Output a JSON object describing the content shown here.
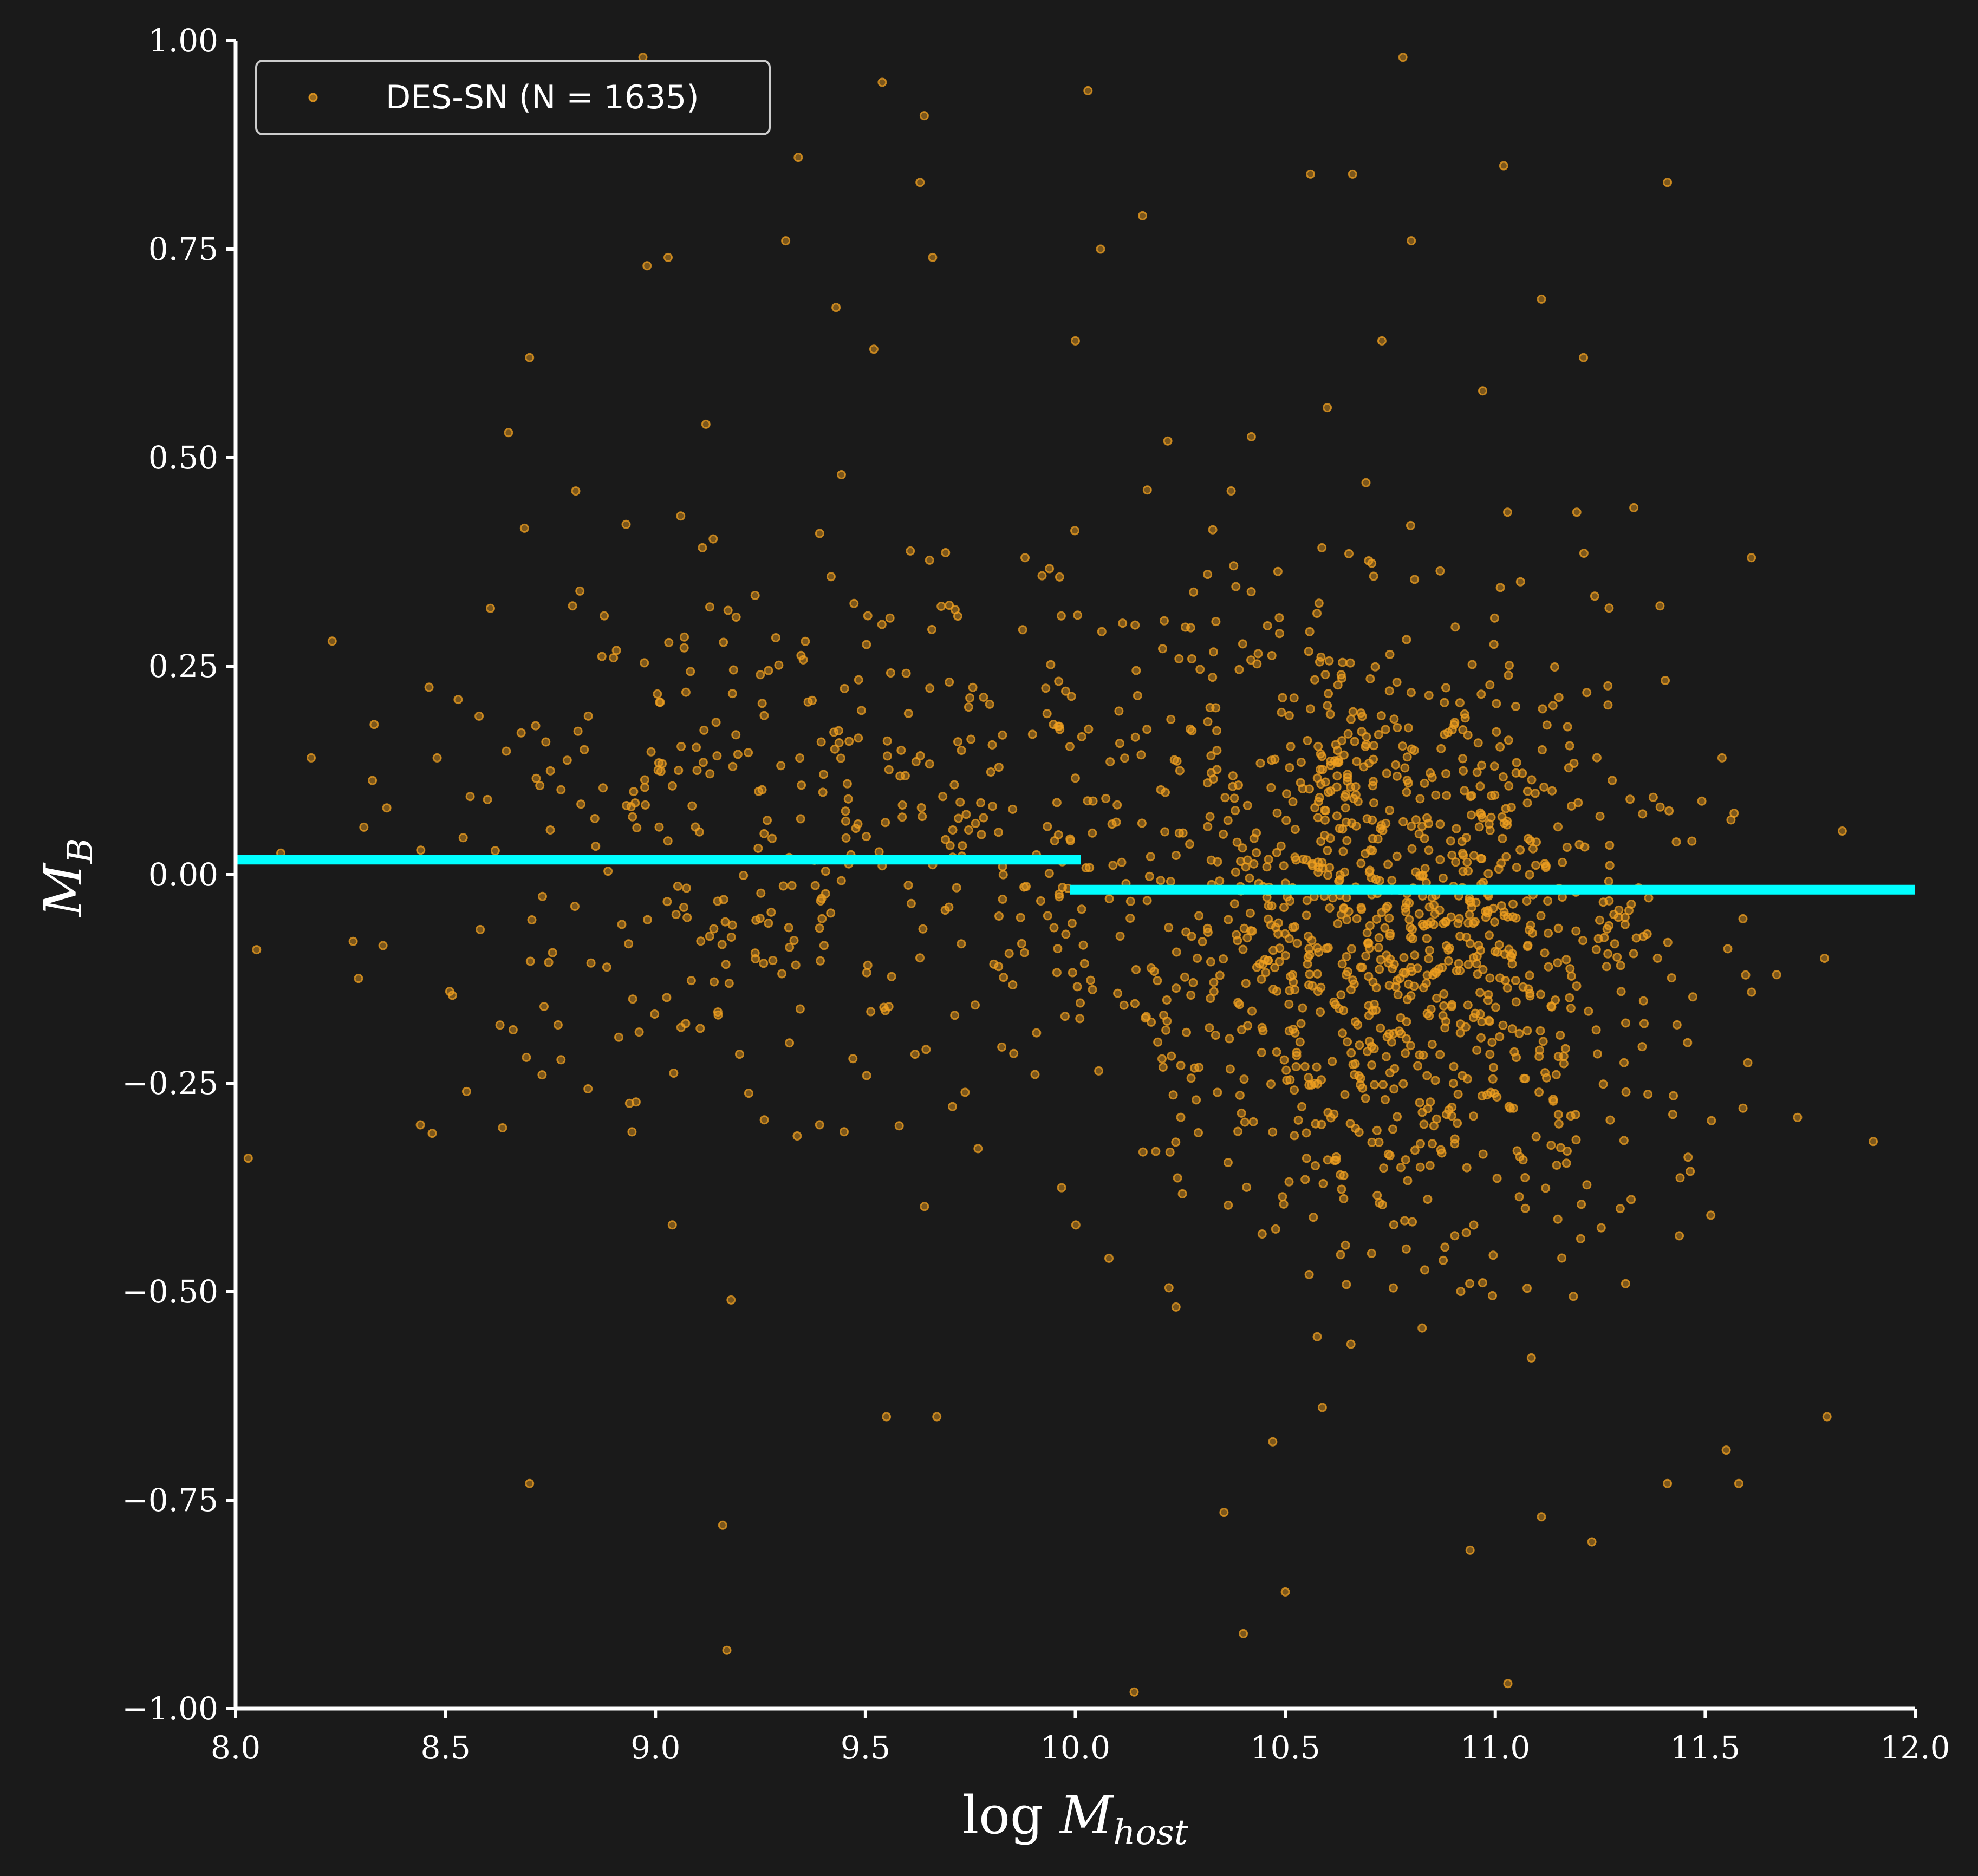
{
  "colors": {
    "background": "#1a1a1a",
    "axes": "#ffffff",
    "points": "#f0a020",
    "fit_lines": "#00ffff"
  },
  "chart_data": {
    "type": "scatter",
    "title": "",
    "xlabel": "log M_host",
    "ylabel": "M_B",
    "xlim": [
      8.0,
      12.0
    ],
    "ylim": [
      -1.0,
      1.0
    ],
    "xticks": [
      "8.0",
      "8.5",
      "9.0",
      "9.5",
      "10.0",
      "10.5",
      "11.0",
      "11.5",
      "12.0"
    ],
    "yticks": [
      "1.00",
      "0.75",
      "0.50",
      "0.25",
      "0.00",
      "−0.25",
      "−0.50",
      "−0.75",
      "−1.00"
    ],
    "grid": false,
    "legend": {
      "placement": "top-left",
      "entries": [
        "DES-SN (N = 1635)"
      ]
    },
    "series": [
      {
        "name": "DES-SN (N = 1635)",
        "type": "scatter",
        "point_count": 1635,
        "points_sample": [
          [
            8.03,
            -0.34
          ],
          [
            8.05,
            -0.09
          ],
          [
            8.18,
            0.14
          ],
          [
            8.23,
            0.28
          ],
          [
            8.28,
            -0.08
          ],
          [
            8.33,
            0.18
          ],
          [
            8.36,
            0.08
          ],
          [
            8.44,
            -0.3
          ],
          [
            8.48,
            0.14
          ],
          [
            8.51,
            -0.14
          ],
          [
            8.53,
            0.21
          ],
          [
            8.55,
            -0.26
          ],
          [
            8.58,
            0.19
          ],
          [
            8.6,
            0.09
          ],
          [
            8.65,
            0.53
          ],
          [
            8.68,
            0.17
          ],
          [
            8.7,
            0.62
          ],
          [
            8.7,
            -0.73
          ],
          [
            8.73,
            -0.24
          ],
          [
            8.81,
            0.46
          ],
          [
            8.82,
            0.34
          ],
          [
            8.84,
            0.19
          ],
          [
            8.9,
            0.26
          ],
          [
            8.93,
            0.42
          ],
          [
            8.97,
            0.98
          ],
          [
            8.98,
            0.73
          ],
          [
            9.03,
            0.74
          ],
          [
            9.04,
            -0.42
          ],
          [
            9.06,
            0.43
          ],
          [
            9.12,
            0.54
          ],
          [
            9.16,
            -0.78
          ],
          [
            9.17,
            -0.93
          ],
          [
            9.18,
            -0.51
          ],
          [
            9.31,
            0.76
          ],
          [
            9.34,
            0.86
          ],
          [
            9.43,
            0.68
          ],
          [
            9.52,
            0.63
          ],
          [
            9.54,
            0.95
          ],
          [
            9.55,
            -0.65
          ],
          [
            9.63,
            0.83
          ],
          [
            9.64,
            0.91
          ],
          [
            9.66,
            0.74
          ],
          [
            9.67,
            -0.65
          ],
          [
            9.72,
            0.31
          ],
          [
            9.88,
            0.38
          ],
          [
            10.0,
            0.64
          ],
          [
            10.03,
            0.94
          ],
          [
            10.06,
            0.75
          ],
          [
            10.08,
            -0.46
          ],
          [
            10.14,
            -0.98
          ],
          [
            10.16,
            0.79
          ],
          [
            10.22,
            0.52
          ],
          [
            10.4,
            -0.91
          ],
          [
            10.47,
            -0.68
          ],
          [
            10.5,
            -0.86
          ],
          [
            10.56,
            0.84
          ],
          [
            10.6,
            0.56
          ],
          [
            10.66,
            0.84
          ],
          [
            10.73,
            0.64
          ],
          [
            10.78,
            0.98
          ],
          [
            10.8,
            0.76
          ],
          [
            10.94,
            -0.81
          ],
          [
            10.97,
            0.58
          ],
          [
            11.02,
            0.85
          ],
          [
            11.03,
            -0.97
          ],
          [
            11.11,
            0.69
          ],
          [
            11.11,
            -0.77
          ],
          [
            11.21,
            0.62
          ],
          [
            11.23,
            -0.8
          ],
          [
            11.33,
            0.44
          ],
          [
            11.41,
            0.83
          ],
          [
            11.41,
            -0.73
          ],
          [
            11.54,
            0.14
          ],
          [
            11.55,
            -0.69
          ],
          [
            11.58,
            -0.73
          ],
          [
            11.59,
            -0.28
          ],
          [
            11.61,
            0.38
          ],
          [
            11.67,
            -0.12
          ],
          [
            11.79,
            -0.65
          ],
          [
            11.9,
            -0.32
          ]
        ]
      },
      {
        "name": "",
        "type": "step_line",
        "segments": [
          {
            "x": [
              8.0,
              10.0
            ],
            "y": 0.018
          },
          {
            "x": [
              10.0,
              12.0
            ],
            "y": -0.018
          }
        ]
      }
    ]
  }
}
